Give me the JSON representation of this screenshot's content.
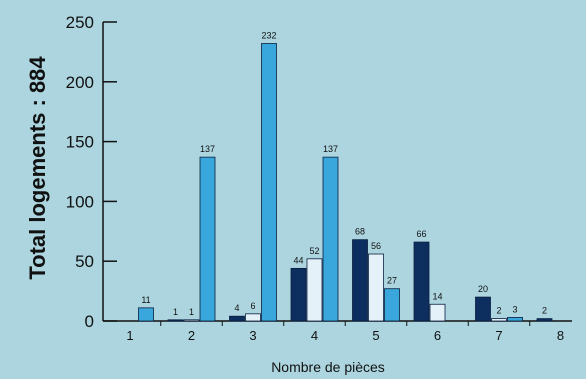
{
  "chart_data": {
    "type": "bar",
    "title": "",
    "xlabel": "Nombre de pièces",
    "ylabel": "Total logements : 884",
    "ylim": [
      0,
      250
    ],
    "yticks": [
      0,
      50,
      100,
      150,
      200,
      250
    ],
    "categories": [
      "1",
      "2",
      "3",
      "4",
      "5",
      "6",
      "7",
      "8"
    ],
    "grid": false,
    "series": [
      {
        "color": "#0d2f5f",
        "values": [
          null,
          1,
          4,
          44,
          68,
          66,
          20,
          2
        ]
      },
      {
        "color": "#e4f1f8",
        "values": [
          null,
          1,
          6,
          52,
          56,
          14,
          2,
          null
        ]
      },
      {
        "color": "#3aa7dc",
        "values": [
          11,
          137,
          232,
          137,
          27,
          null,
          3,
          null
        ]
      }
    ],
    "data_labels": [
      [
        null,
        "1",
        "4",
        "44",
        "68",
        "66",
        "20",
        "2"
      ],
      [
        null,
        "1",
        "6",
        "52",
        "56",
        "14",
        "2",
        null
      ],
      [
        "11",
        "137",
        "232",
        "137",
        "27",
        null,
        "3",
        null
      ]
    ]
  }
}
